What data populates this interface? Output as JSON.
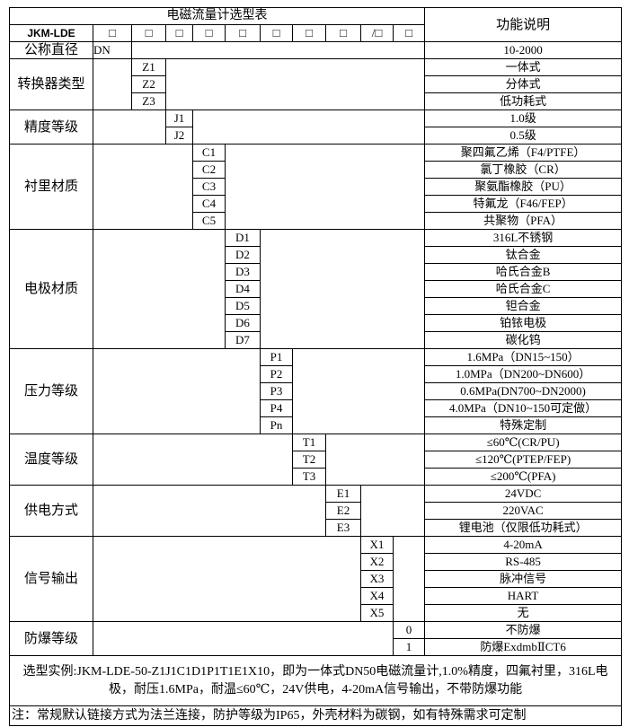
{
  "title": "电磁流量计选型表",
  "desc_header": "功能说明",
  "model": "JKM-LDE",
  "header_boxes": [
    "□",
    "□",
    "□",
    "□",
    "□",
    "□",
    "□",
    "□",
    "/□",
    "□"
  ],
  "diameter": {
    "label": "公称直径",
    "code": "DN",
    "desc": "10-2000"
  },
  "groups": [
    {
      "label": "转换器类型",
      "col": 2,
      "items": [
        {
          "code": "Z1",
          "desc": "一体式"
        },
        {
          "code": "Z2",
          "desc": "分体式"
        },
        {
          "code": "Z3",
          "desc": "低功耗式"
        }
      ]
    },
    {
      "label": "精度等级",
      "col": 3,
      "items": [
        {
          "code": "J1",
          "desc": "1.0级"
        },
        {
          "code": "J2",
          "desc": "0.5级"
        }
      ]
    },
    {
      "label": "衬里材质",
      "col": 4,
      "items": [
        {
          "code": "C1",
          "desc": "聚四氟乙烯（F4/PTFE）"
        },
        {
          "code": "C2",
          "desc": "氯丁橡胶（CR）"
        },
        {
          "code": "C3",
          "desc": "聚氨酯橡胶（PU）"
        },
        {
          "code": "C4",
          "desc": "特氟龙（F46/FEP）"
        },
        {
          "code": "C5",
          "desc": "共聚物（PFA）"
        }
      ]
    },
    {
      "label": "电极材质",
      "col": 5,
      "items": [
        {
          "code": "D1",
          "desc": "316L不锈钢"
        },
        {
          "code": "D2",
          "desc": "钛合金"
        },
        {
          "code": "D3",
          "desc": "哈氏合金B"
        },
        {
          "code": "D4",
          "desc": "哈氏合金C"
        },
        {
          "code": "D5",
          "desc": "钽合金"
        },
        {
          "code": "D6",
          "desc": "铂铱电极"
        },
        {
          "code": "D7",
          "desc": "碳化钨"
        }
      ]
    },
    {
      "label": "压力等级",
      "col": 6,
      "items": [
        {
          "code": "P1",
          "desc": "1.6MPa（DN15~150）"
        },
        {
          "code": "P2",
          "desc": "1.0MPa（DN200~DN600）"
        },
        {
          "code": "P3",
          "desc": "0.6MPa(DN700~DN2000)"
        },
        {
          "code": "P4",
          "desc": "4.0MPa（DN10~150可定做）"
        },
        {
          "code": "Pn",
          "desc": "特殊定制"
        }
      ]
    },
    {
      "label": "温度等级",
      "col": 7,
      "items": [
        {
          "code": "T1",
          "desc": "≤60℃(CR/PU)"
        },
        {
          "code": "T2",
          "desc": "≤120℃(PTEP/FEP)"
        },
        {
          "code": "T3",
          "desc": "≤200℃(PFA)"
        }
      ]
    },
    {
      "label": "供电方式",
      "col": 8,
      "items": [
        {
          "code": "E1",
          "desc": "24VDC"
        },
        {
          "code": "E2",
          "desc": "220VAC"
        },
        {
          "code": "E3",
          "desc": "锂电池（仅限低功耗式）"
        }
      ]
    },
    {
      "label": "信号输出",
      "col": 9,
      "items": [
        {
          "code": "X1",
          "desc": "4-20mA"
        },
        {
          "code": "X2",
          "desc": "RS-485"
        },
        {
          "code": "X3",
          "desc": "脉冲信号"
        },
        {
          "code": "X4",
          "desc": "HART"
        },
        {
          "code": "X5",
          "desc": "无"
        }
      ]
    },
    {
      "label": "防爆等级",
      "col": 10,
      "items": [
        {
          "code": "0",
          "desc": "不防爆"
        },
        {
          "code": "1",
          "desc": "防爆ExdmbⅡCT6"
        }
      ]
    }
  ],
  "example": "选型实例:JKM-LDE-50-Z1J1C1D1P1T1E1X10，即为一体式DN50电磁流量计,1.0%精度，四氟衬里，316L电极，耐压1.6MPa，耐温≤60℃，24V供电，4-20mA信号输出，不带防爆功能",
  "note": "注：常规默认链接方式为法兰连接，防护等级为IP65，外壳材料为碳钢，如有特殊需求可定制"
}
